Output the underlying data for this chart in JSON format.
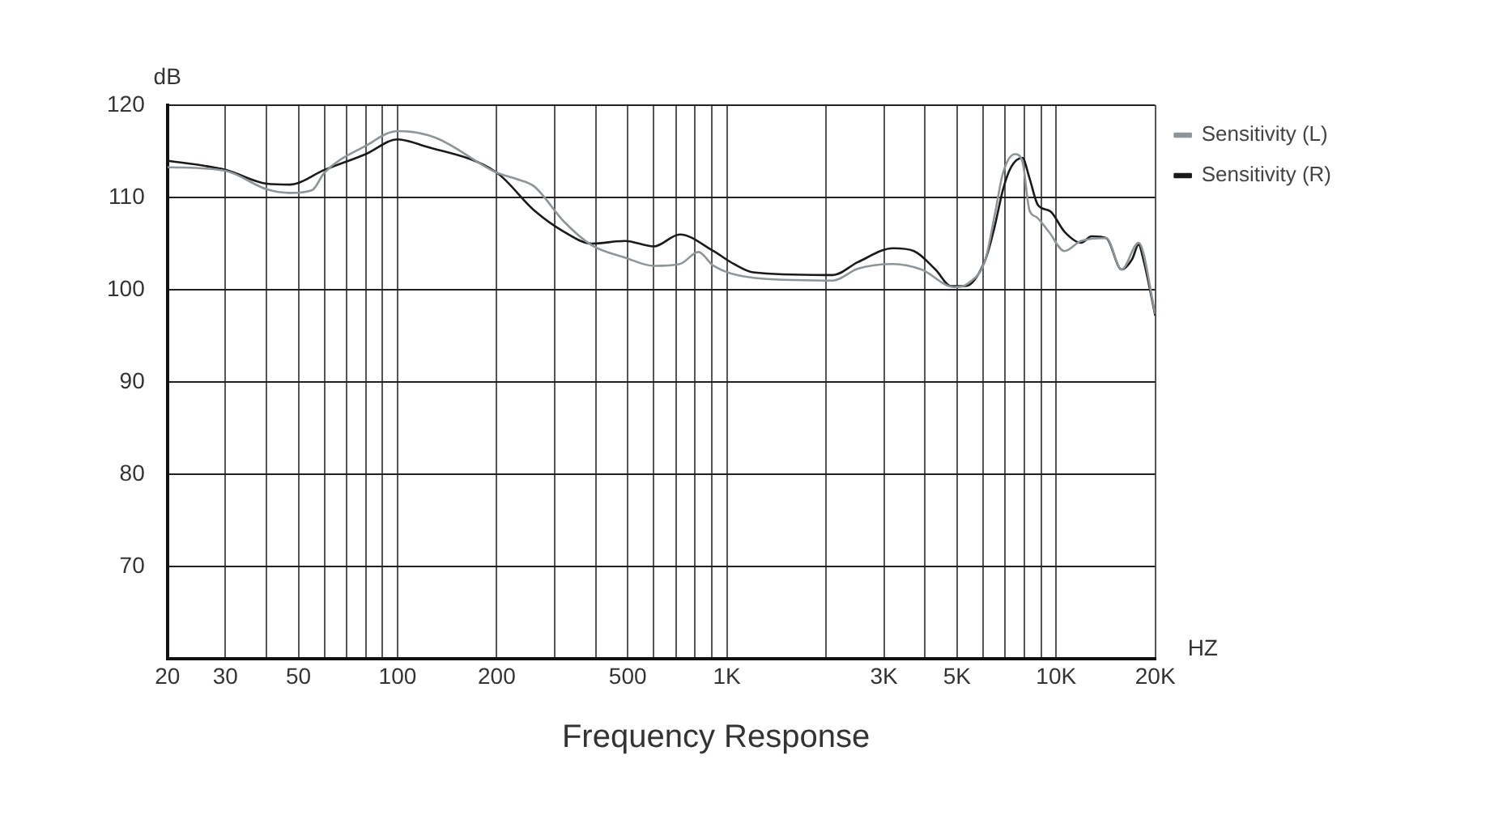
{
  "chart_data": {
    "type": "line",
    "title": "Frequency Response",
    "xlabel": "HZ",
    "ylabel": "dB",
    "log": "x",
    "grid": true,
    "legend": "top right",
    "marker": "none",
    "line_style": "solid",
    "xlim": [
      20,
      20000
    ],
    "ylim": [
      60,
      120
    ],
    "yticks": [
      70,
      80,
      90,
      100,
      110,
      120
    ],
    "xticks": [
      20,
      30,
      {
        "value": 40,
        "label": null
      },
      50,
      {
        "value": 60,
        "label": null
      },
      {
        "value": 70,
        "label": null
      },
      {
        "value": 80,
        "label": null
      },
      {
        "value": 90,
        "label": null
      },
      100,
      200,
      {
        "value": 300,
        "label": null
      },
      {
        "value": 400,
        "label": null
      },
      500,
      {
        "value": 600,
        "label": null
      },
      {
        "value": 700,
        "label": null
      },
      {
        "value": 800,
        "label": null
      },
      {
        "value": 900,
        "label": null
      },
      {
        "value": 1000,
        "label": "1K"
      },
      {
        "value": 2000,
        "label": null
      },
      {
        "value": 3000,
        "label": "3K"
      },
      {
        "value": 4000,
        "label": null
      },
      {
        "value": 5000,
        "label": "5K"
      },
      {
        "value": 6000,
        "label": null
      },
      {
        "value": 7000,
        "label": null
      },
      {
        "value": 8000,
        "label": null
      },
      {
        "value": 9000,
        "label": null
      },
      {
        "value": 10000,
        "label": "10K"
      },
      {
        "value": 20000,
        "label": "20K"
      }
    ],
    "series": [
      {
        "name": "Sensitivity (L)",
        "color": "#8c9599",
        "x": [
          20,
          30,
          40,
          47,
          55,
          60,
          80,
          100,
          130,
          200,
          230,
          260,
          320,
          390,
          490,
          600,
          720,
          820,
          910,
          1200,
          2100,
          2500,
          3200,
          3900,
          4900,
          5400,
          6100,
          6500,
          6900,
          7500,
          7900,
          8300,
          8700,
          9500,
          10600,
          11900,
          14200,
          15800,
          17800,
          20000
        ],
        "values": [
          113.3,
          112.9,
          110.9,
          110.5,
          110.8,
          112.7,
          115.6,
          117.2,
          116.5,
          112.7,
          112.0,
          111.2,
          107.4,
          104.8,
          103.5,
          102.6,
          102.8,
          104.1,
          102.6,
          101.3,
          101.0,
          102.3,
          102.8,
          102.2,
          100.3,
          100.7,
          103.3,
          108.0,
          112.7,
          114.7,
          113.9,
          108.6,
          107.9,
          106.3,
          104.2,
          105.3,
          105.6,
          102.2,
          105.1,
          97.4
        ]
      },
      {
        "name": "Sensitivity (R)",
        "color": "#1a1a1a",
        "x": [
          20,
          30,
          40,
          47,
          60,
          80,
          100,
          120,
          200,
          260,
          320,
          390,
          490,
          600,
          720,
          910,
          1050,
          1200,
          2100,
          2500,
          3200,
          3700,
          4300,
          4800,
          5300,
          6100,
          6500,
          6900,
          7300,
          7900,
          8300,
          8800,
          9600,
          10600,
          11900,
          12800,
          14200,
          15800,
          17000,
          17800,
          18400,
          20000
        ],
        "values": [
          114.0,
          113.0,
          111.5,
          111.4,
          113.0,
          114.7,
          116.3,
          115.6,
          112.7,
          108.6,
          106.3,
          105.0,
          105.3,
          104.7,
          106.0,
          104.2,
          102.8,
          101.9,
          101.6,
          103.0,
          104.5,
          104.2,
          102.2,
          100.4,
          100.4,
          103.3,
          106.8,
          110.9,
          113.3,
          114.3,
          112.1,
          109.2,
          108.5,
          106.3,
          105.1,
          105.8,
          105.6,
          102.2,
          103.3,
          104.9,
          103.3,
          97.2
        ]
      }
    ]
  }
}
